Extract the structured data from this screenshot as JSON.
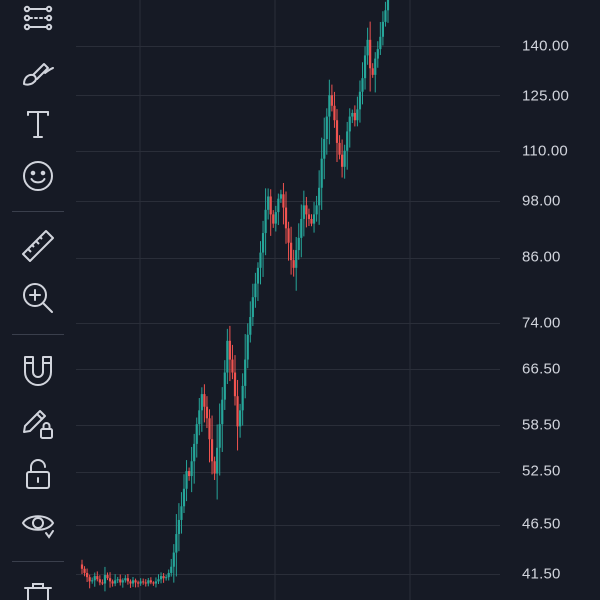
{
  "toolbar": {
    "tools": [
      {
        "name": "patterns-tool",
        "icon": "patterns-icon"
      },
      {
        "name": "brush-tool",
        "icon": "brush-icon"
      },
      {
        "name": "text-tool",
        "icon": "text-icon"
      },
      {
        "name": "emoji-tool",
        "icon": "smiley-icon"
      },
      {
        "name": "measure-tool",
        "icon": "ruler-icon"
      },
      {
        "name": "zoom-in-tool",
        "icon": "zoom-in-icon"
      },
      {
        "name": "magnet-mode-tool",
        "icon": "magnet-icon"
      },
      {
        "name": "lock-drawings-tool",
        "icon": "pencil-lock-icon"
      },
      {
        "name": "lock-all-tool",
        "icon": "unlock-icon"
      },
      {
        "name": "hide-drawings-tool",
        "icon": "eye-icon"
      },
      {
        "name": "remove-drawings-tool",
        "icon": "trash-icon"
      }
    ]
  },
  "colors": {
    "background": "#161a25",
    "grid": "#2a2e39",
    "up": "#26a69a",
    "down": "#ef5350",
    "text": "#d1d4dc",
    "icon": "#d1d4dc"
  },
  "price_axis": {
    "labels": [
      "140.00",
      "125.00",
      "110.00",
      "98.00",
      "86.00",
      "74.00",
      "66.50",
      "58.50",
      "52.50",
      "46.50",
      "41.50"
    ]
  },
  "chart_data": {
    "type": "candlestick",
    "y_scale": "log",
    "ylim": [
      40.5,
      158
    ],
    "closes": [
      42.0,
      41.6,
      41.2,
      40.8,
      40.9,
      41.3,
      41.0,
      40.7,
      40.6,
      41.4,
      41.1,
      40.8,
      40.6,
      40.9,
      41.0,
      40.7,
      40.9,
      41.1,
      40.8,
      40.6,
      40.9,
      40.7,
      40.6,
      40.8,
      40.7,
      40.6,
      40.9,
      40.7,
      40.6,
      40.8,
      41.0,
      41.3,
      41.1,
      41.2,
      41.6,
      42.2,
      43.6,
      45.5,
      47.0,
      48.5,
      50.5,
      52.6,
      52.0,
      53.8,
      56.0,
      58.6,
      60.5,
      62.8,
      61.0,
      59.4,
      56.6,
      53.8,
      52.3,
      55.5,
      58.6,
      62.0,
      66.0,
      71.0,
      68.0,
      66.0,
      62.5,
      58.3,
      60.5,
      64.0,
      68.0,
      72.0,
      75.0,
      78.5,
      81.0,
      84.0,
      87.0,
      91.0,
      96.0,
      99.0,
      95.0,
      93.0,
      95.5,
      98.5,
      99.5,
      96.5,
      92.0,
      89.0,
      85.5,
      84.0,
      87.5,
      90.0,
      94.0,
      97.0,
      95.0,
      94.0,
      93.0,
      95.0,
      97.0,
      101.0,
      108.0,
      113.0,
      119.0,
      125.0,
      122.0,
      118.0,
      112.0,
      109.0,
      106.0,
      110.0,
      115.0,
      119.0,
      120.0,
      118.0,
      121.0,
      126.0,
      130.0,
      137.0,
      142.0,
      133.0,
      131.0,
      136.0,
      139.0,
      143.0,
      148.0,
      152.0,
      156.0
    ]
  }
}
